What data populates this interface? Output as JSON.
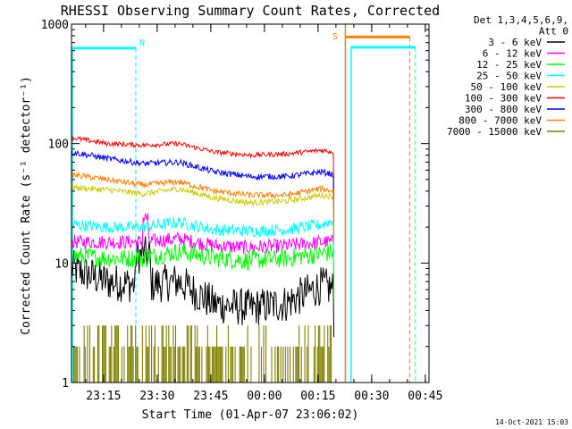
{
  "chart_data": {
    "type": "line",
    "title": "RHESSI Observing Summary Count Rates, Corrected",
    "xlabel": "Start Time (01-Apr-07 23:06:02)",
    "ylabel": "Corrected Count Rate (s⁻¹ detector⁻¹)",
    "yscale": "log",
    "xlim_minutes": [
      0,
      100
    ],
    "ylim": [
      1,
      1000
    ],
    "x_ticks": [
      {
        "minute": 8.97,
        "label": "23:15"
      },
      {
        "minute": 23.97,
        "label": "23:30"
      },
      {
        "minute": 38.97,
        "label": "23:45"
      },
      {
        "minute": 53.97,
        "label": "00:00"
      },
      {
        "minute": 68.97,
        "label": "00:15"
      },
      {
        "minute": 83.97,
        "label": "00:30"
      },
      {
        "minute": 98.97,
        "label": "00:45"
      }
    ],
    "y_ticks": [
      {
        "value": 1,
        "label": "1"
      },
      {
        "value": 10,
        "label": "10"
      },
      {
        "value": 100,
        "label": "100"
      },
      {
        "value": 1000,
        "label": "1000"
      }
    ],
    "legend": {
      "placement": "top-right",
      "header": [
        "Det 1,3,4,5,6,9,",
        "Att 0"
      ],
      "entries": [
        {
          "label": "3 - 6 keV",
          "color": "#000000"
        },
        {
          "label": "6 - 12 keV",
          "color": "#ff00ff"
        },
        {
          "label": "12 - 25 keV",
          "color": "#00ff00"
        },
        {
          "label": "25 - 50 keV",
          "color": "#00ffff"
        },
        {
          "label": "50 - 100 keV",
          "color": "#cccc00"
        },
        {
          "label": "100 - 300 keV",
          "color": "#ff0000"
        },
        {
          "label": "300 - 800 keV",
          "color": "#0000ff"
        },
        {
          "label": "800 - 7000 keV",
          "color": "#ff8000"
        },
        {
          "label": "7000 - 15000 keV",
          "color": "#808000"
        }
      ]
    },
    "x": [
      0,
      10,
      20,
      30,
      40,
      50,
      60,
      70,
      73.4
    ],
    "series": [
      {
        "name": "3 - 6 keV",
        "color": "#000000",
        "noise": 0.16,
        "values": [
          9,
          7,
          6.5,
          7,
          4.5,
          4.2,
          4.6,
          6.5,
          6
        ]
      },
      {
        "name": "6 - 12 keV",
        "color": "#ff00ff",
        "noise": 0.06,
        "values": [
          15,
          15,
          15,
          16,
          14,
          13.5,
          14,
          15,
          15
        ]
      },
      {
        "name": "12 - 25 keV",
        "color": "#00ff00",
        "noise": 0.08,
        "values": [
          11.5,
          11,
          11,
          12.5,
          11,
          10.5,
          11,
          12,
          12.5
        ]
      },
      {
        "name": "25 - 50 keV",
        "color": "#00ffff",
        "noise": 0.05,
        "values": [
          21,
          20,
          20,
          22,
          19,
          18.5,
          19,
          21,
          23
        ]
      },
      {
        "name": "50 - 100 keV",
        "color": "#cccc00",
        "noise": 0.025,
        "values": [
          43,
          41,
          38,
          42,
          35,
          32,
          33,
          37,
          36
        ]
      },
      {
        "name": "100 - 300 keV",
        "color": "#ff0000",
        "noise": 0.02,
        "values": [
          112,
          100,
          97,
          100,
          85,
          80,
          82,
          88,
          85
        ]
      },
      {
        "name": "300 - 800 keV",
        "color": "#0000ff",
        "noise": 0.025,
        "values": [
          85,
          75,
          68,
          70,
          58,
          53,
          53,
          58,
          55
        ]
      },
      {
        "name": "800 - 7000 keV",
        "color": "#ff8000",
        "noise": 0.025,
        "values": [
          55,
          50,
          45,
          48,
          40,
          37,
          37,
          42,
          40
        ]
      },
      {
        "name": "7000 - 15000 keV",
        "color": "#808000",
        "noise": 0,
        "values": [
          2,
          2,
          1.5,
          2,
          1.5,
          1.5,
          1.5,
          2.5,
          2
        ]
      }
    ],
    "annotations": [
      {
        "text": "N",
        "color": "#00ffff",
        "x_minute": 18
      },
      {
        "text": "S",
        "color": "#ff8000",
        "x_minute": 75.5
      }
    ],
    "night_band": {
      "x_start_minute": 0,
      "x_end_minute": 18,
      "color": "#00ffff"
    },
    "saa_band": {
      "x_start_minute": 76.6,
      "x_end_minute": 94.6,
      "color": "#ff8000"
    },
    "night_band_2": {
      "x_start_minute": 78.2,
      "x_end_minute": 96.2,
      "color": "#00ffff"
    },
    "timestamp": "14-Oct-2021 15:03"
  }
}
